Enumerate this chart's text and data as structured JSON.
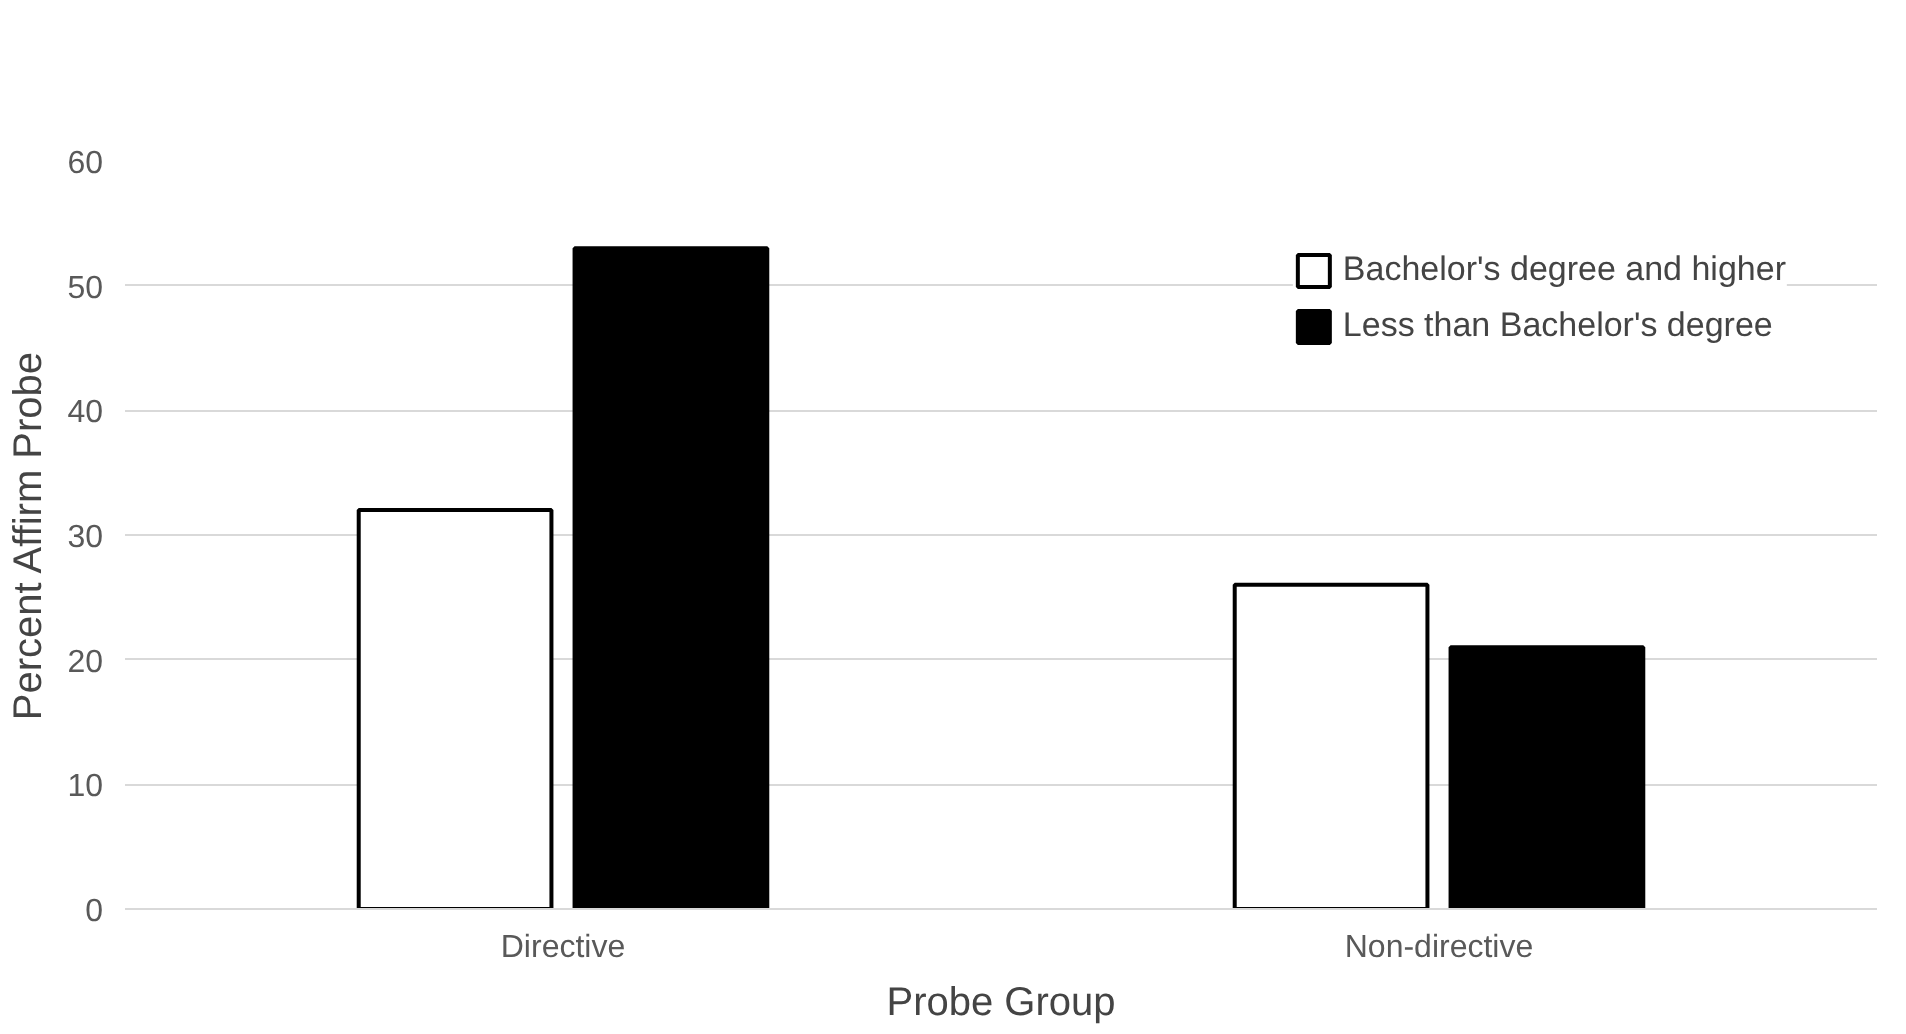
{
  "chart_data": {
    "type": "bar",
    "xlabel": "Probe Group",
    "ylabel": "Percent Affirm Probe",
    "categories": [
      "Directive",
      "Non-directive"
    ],
    "series": [
      {
        "name": "Bachelor's degree and higher",
        "color": "#ffffff",
        "values": [
          32,
          26
        ]
      },
      {
        "name": "Less than Bachelor's degree",
        "color": "#000000",
        "values": [
          53,
          21
        ]
      }
    ],
    "ylim": [
      0,
      60
    ],
    "yticks": [
      0,
      10,
      20,
      30,
      40,
      50,
      60
    ],
    "grid": "y",
    "legend": "top right"
  }
}
